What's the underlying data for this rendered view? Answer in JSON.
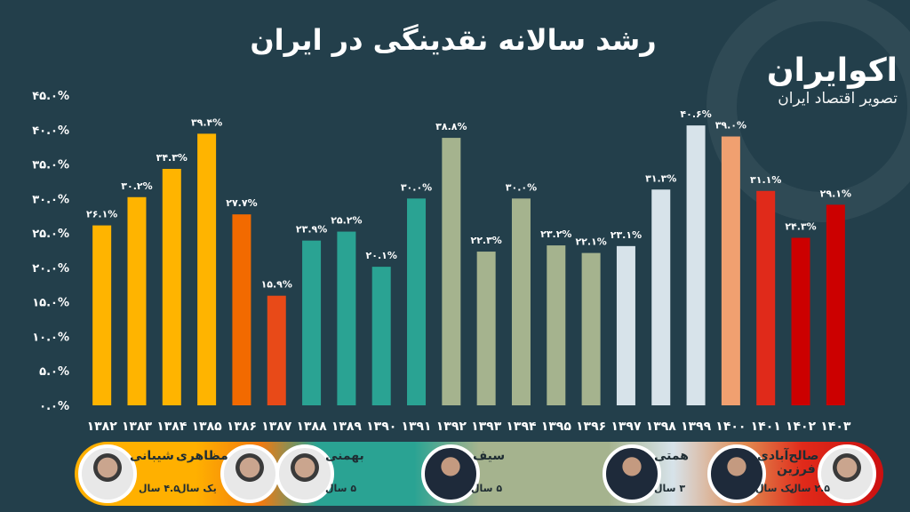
{
  "header": {
    "title": "رشد سالانه نقدینگی در ایران",
    "brand_name": "اکوایران",
    "brand_tagline": "تصویر اقتصاد ایران"
  },
  "chart_data": {
    "type": "bar",
    "title": "رشد سالانه نقدینگی در ایران",
    "xlabel": "",
    "ylabel": "",
    "ylim": [
      0,
      45
    ],
    "y_ticks": [
      "۰.۰%",
      "۵.۰%",
      "۱۰.۰%",
      "۱۵.۰%",
      "۲۰.۰%",
      "۲۵.۰%",
      "۳۰.۰%",
      "۳۵.۰%",
      "۴۰.۰%",
      "۴۵.۰%"
    ],
    "grid": false,
    "categories": [
      "۱۳۸۲",
      "۱۳۸۳",
      "۱۳۸۴",
      "۱۳۸۵",
      "۱۳۸۶",
      "۱۳۸۷",
      "۱۳۸۸",
      "۱۳۸۹",
      "۱۳۹۰",
      "۱۳۹۱",
      "۱۳۹۲",
      "۱۳۹۳",
      "۱۳۹۴",
      "۱۳۹۵",
      "۱۳۹۶",
      "۱۳۹۷",
      "۱۳۹۸",
      "۱۳۹۹",
      "۱۴۰۰",
      "۱۴۰۱",
      "۱۴۰۲",
      "۱۴۰۳"
    ],
    "values": [
      26.1,
      30.2,
      34.3,
      39.4,
      27.7,
      15.9,
      23.9,
      25.2,
      20.1,
      30.0,
      38.8,
      22.3,
      30.0,
      23.2,
      22.1,
      23.1,
      31.3,
      40.6,
      39.0,
      31.1,
      24.3,
      29.1
    ],
    "value_labels": [
      "۲۶.۱%",
      "۳۰.۲%",
      "۳۴.۳%",
      "۳۹.۴%",
      "۲۷.۷%",
      "۱۵.۹%",
      "۲۳.۹%",
      "۲۵.۲%",
      "۲۰.۱%",
      "۳۰.۰%",
      "۳۸.۸%",
      "۲۲.۳%",
      "۳۰.۰%",
      "۲۳.۲%",
      "۲۲.۱%",
      "۲۳.۱%",
      "۳۱.۳%",
      "۴۰.۶%",
      "۳۹.۰%",
      "۳۱.۱%",
      "۲۴.۳%",
      "۲۹.۱%"
    ],
    "bar_colors": [
      "#ffb400",
      "#ffb400",
      "#ffb400",
      "#ffb400",
      "#f26a00",
      "#e84a18",
      "#2aa393",
      "#2aa393",
      "#2aa393",
      "#2aa393",
      "#a5b38e",
      "#a5b38e",
      "#a5b38e",
      "#a5b38e",
      "#a5b38e",
      "#d7e3ea",
      "#d7e3ea",
      "#d7e3ea",
      "#f0a070",
      "#e02a1a",
      "#cc0000",
      "#cc0000"
    ]
  },
  "governors": [
    {
      "name": "شیبانی",
      "years": "۴.۵ سال"
    },
    {
      "name": "مظاهری",
      "years": "یک سال"
    },
    {
      "name": "بهمنی",
      "years": "۵ سال"
    },
    {
      "name": "سیف",
      "years": "۵ سال"
    },
    {
      "name": "همتی",
      "years": "۳ سال"
    },
    {
      "name": "صالح‌آبادی",
      "years": "یک سال"
    },
    {
      "name": "فرزین",
      "years": "۲.۵ سال"
    }
  ]
}
